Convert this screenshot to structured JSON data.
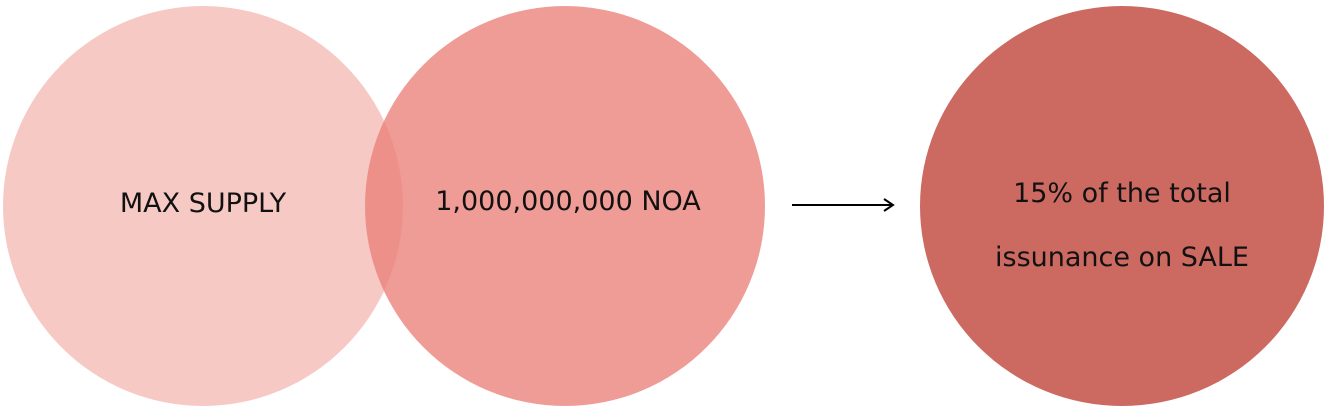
{
  "circles": [
    {
      "label": "MAX SUPPLY",
      "color": "#f3b4af"
    },
    {
      "label": "1,000,000,000 NOA",
      "color": "#ea807a"
    },
    {
      "lines": [
        "15% of the total",
        "issunance on SALE"
      ],
      "color": "#cc6a62"
    }
  ],
  "arrow": {
    "icon": "right-arrow-icon"
  }
}
